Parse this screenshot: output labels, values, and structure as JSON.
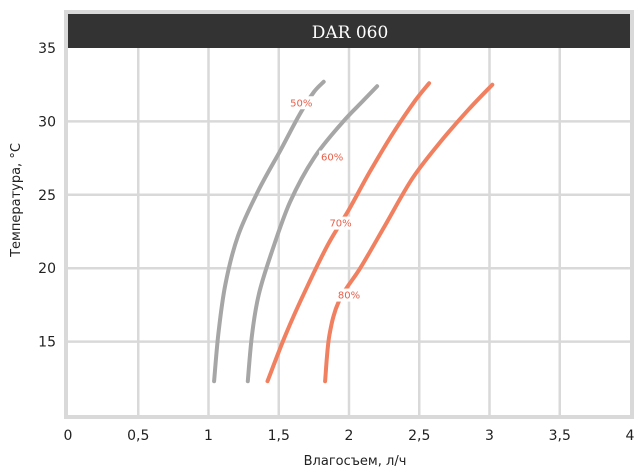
{
  "chart_data": {
    "type": "line",
    "title": "DAR 060",
    "xlabel": "Влагосъем, л/ч",
    "ylabel": "Температура, °С",
    "xlim": [
      0,
      4
    ],
    "ylim": [
      10,
      35
    ],
    "grid": true,
    "x_ticks": [
      "0",
      "0,5",
      "1",
      "1,5",
      "2",
      "2,5",
      "3",
      "3,5",
      "4"
    ],
    "x_tick_values": [
      0,
      0.5,
      1,
      1.5,
      2,
      2.5,
      3,
      3.5,
      4
    ],
    "y_ticks": [
      "15",
      "20",
      "25",
      "30",
      "35"
    ],
    "y_tick_values": [
      15,
      20,
      25,
      30,
      35
    ],
    "series": [
      {
        "name": "50%",
        "color": "#a6a6a6",
        "label_at": [
          1.66,
          31.1
        ],
        "points": [
          [
            1.04,
            12.3
          ],
          [
            1.07,
            15.5
          ],
          [
            1.12,
            18.9
          ],
          [
            1.21,
            22.2
          ],
          [
            1.35,
            25.2
          ],
          [
            1.51,
            28.0
          ],
          [
            1.65,
            30.5
          ],
          [
            1.75,
            32.0
          ],
          [
            1.82,
            32.7
          ]
        ]
      },
      {
        "name": "60%",
        "color": "#a6a6a6",
        "label_at": [
          1.88,
          27.4
        ],
        "points": [
          [
            1.28,
            12.3
          ],
          [
            1.31,
            15.5
          ],
          [
            1.36,
            18.3
          ],
          [
            1.45,
            21.1
          ],
          [
            1.58,
            24.5
          ],
          [
            1.75,
            27.5
          ],
          [
            1.95,
            29.9
          ],
          [
            2.1,
            31.4
          ],
          [
            2.2,
            32.4
          ]
        ]
      },
      {
        "name": "70%",
        "color": "#f08060",
        "label_at": [
          1.94,
          22.9
        ],
        "points": [
          [
            1.42,
            12.3
          ],
          [
            1.55,
            15.5
          ],
          [
            1.7,
            18.7
          ],
          [
            1.85,
            21.6
          ],
          [
            2.0,
            24.0
          ],
          [
            2.15,
            26.6
          ],
          [
            2.32,
            29.3
          ],
          [
            2.47,
            31.4
          ],
          [
            2.57,
            32.6
          ]
        ]
      },
      {
        "name": "80%",
        "color": "#f08060",
        "label_at": [
          2.0,
          18.0
        ],
        "points": [
          [
            1.83,
            12.3
          ],
          [
            1.86,
            15.4
          ],
          [
            1.93,
            17.8
          ],
          [
            2.08,
            20.0
          ],
          [
            2.25,
            22.8
          ],
          [
            2.45,
            26.1
          ],
          [
            2.65,
            28.6
          ],
          [
            2.85,
            30.8
          ],
          [
            3.02,
            32.5
          ]
        ]
      }
    ]
  }
}
